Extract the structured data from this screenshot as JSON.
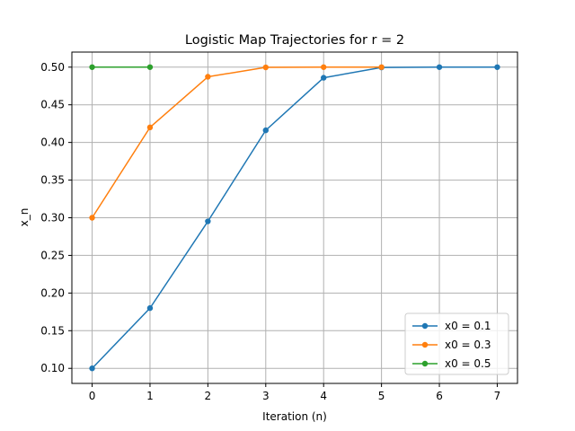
{
  "chart_data": {
    "type": "line",
    "title": "Logistic Map Trajectories for r = 2",
    "xlabel": "Iteration (n)",
    "ylabel": "x_n",
    "xlim": [
      -0.35,
      7.35
    ],
    "ylim": [
      0.08,
      0.52
    ],
    "xticks": [
      0,
      1,
      2,
      3,
      4,
      5,
      6,
      7
    ],
    "yticks": [
      0.1,
      0.15,
      0.2,
      0.25,
      0.3,
      0.35,
      0.4,
      0.45,
      0.5
    ],
    "ytick_labels": [
      "0.10",
      "0.15",
      "0.20",
      "0.25",
      "0.30",
      "0.35",
      "0.40",
      "0.45",
      "0.50"
    ],
    "xtick_labels": [
      "0",
      "1",
      "2",
      "3",
      "4",
      "5",
      "6",
      "7"
    ],
    "grid": true,
    "legend_position": "lower-right",
    "series": [
      {
        "name": "x0 = 0.1",
        "color": "#1f77b4",
        "x": [
          0,
          1,
          2,
          3,
          4,
          5,
          6,
          7
        ],
        "y": [
          0.1,
          0.18,
          0.2952,
          0.41611,
          0.48592,
          0.4996,
          0.5,
          0.5
        ]
      },
      {
        "name": "x0 = 0.3",
        "color": "#ff7f0e",
        "x": [
          0,
          1,
          2,
          3,
          4,
          5
        ],
        "y": [
          0.3,
          0.42,
          0.4872,
          0.49967,
          0.5,
          0.5
        ]
      },
      {
        "name": "x0 = 0.5",
        "color": "#2ca02c",
        "x": [
          0,
          1
        ],
        "y": [
          0.5,
          0.5
        ]
      }
    ]
  }
}
